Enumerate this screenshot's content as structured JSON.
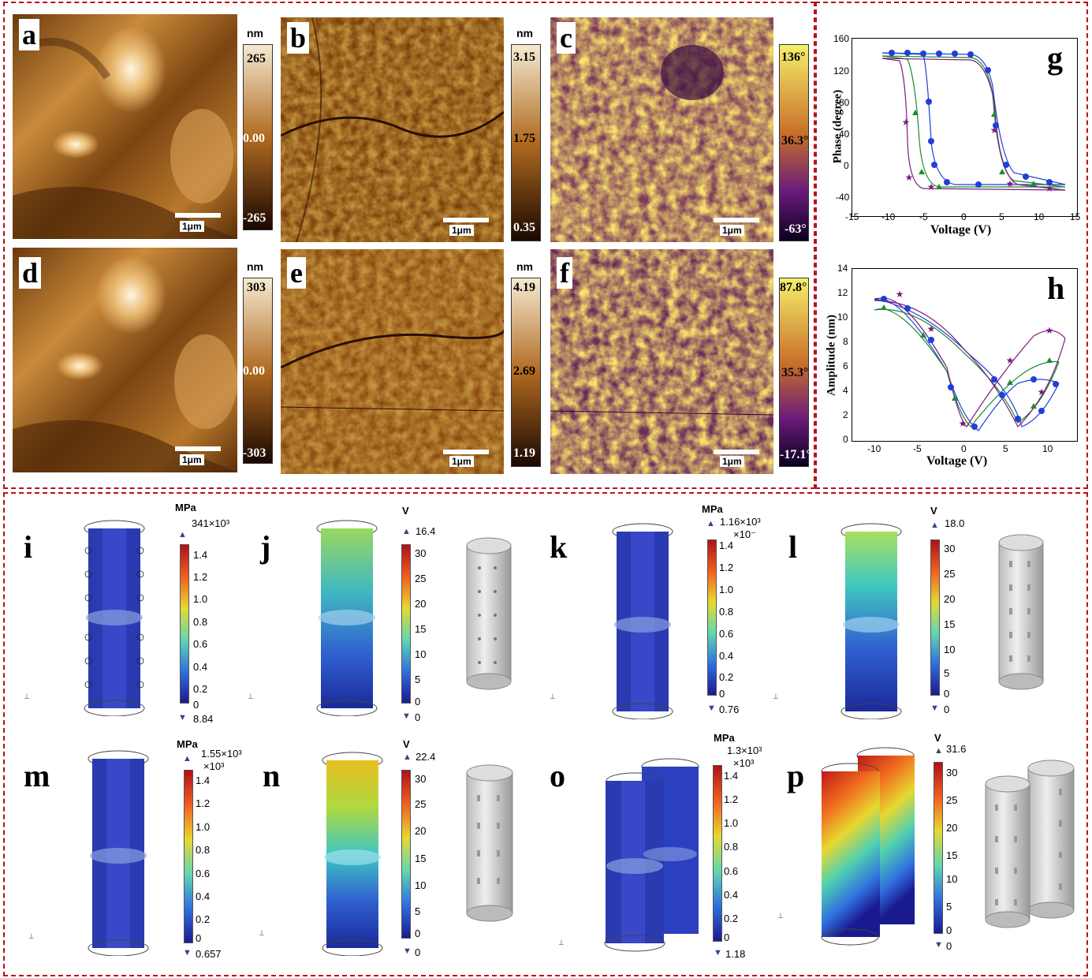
{
  "panels": {
    "a": {
      "letter": "a",
      "unit": "nm",
      "max": "265",
      "mid": "0.00",
      "min": "-265",
      "scale": "1μm"
    },
    "b": {
      "letter": "b",
      "unit": "nm",
      "max": "3.15",
      "mid": "1.75",
      "min": "0.35",
      "scale": "1μm"
    },
    "c": {
      "letter": "c",
      "unit": "",
      "max": "136°",
      "mid": "36.3°",
      "min": "-63°",
      "scale": "1μm"
    },
    "d": {
      "letter": "d",
      "unit": "nm",
      "max": "303",
      "mid": "0.00",
      "min": "-303",
      "scale": "1μm"
    },
    "e": {
      "letter": "e",
      "unit": "nm",
      "max": "4.19",
      "mid": "2.69",
      "min": "1.19",
      "scale": "1μm"
    },
    "f": {
      "letter": "f",
      "unit": "",
      "max": "87.8°",
      "mid": "35.3°",
      "min": "-17.1°",
      "scale": "1μm"
    }
  },
  "plots": {
    "g": {
      "letter": "g",
      "ylabel": "Phase (degree)",
      "xlabel": "Voltage (V)",
      "yticks": [
        "160",
        "120",
        "80",
        "40",
        "0",
        "-40"
      ],
      "xticks": [
        "-15",
        "-10",
        "-5",
        "0",
        "5",
        "10",
        "15"
      ]
    },
    "h": {
      "letter": "h",
      "ylabel": "Amplitude (nm)",
      "xlabel": "Voltage (V)",
      "yticks": [
        "14",
        "12",
        "10",
        "8",
        "6",
        "4",
        "2",
        "0"
      ],
      "xticks": [
        "-10",
        "-5",
        "0",
        "5",
        "10"
      ]
    }
  },
  "sims": {
    "i": {
      "letter": "i",
      "unit": "MPa",
      "top": "341×10³",
      "bottom": "8.84",
      "ticks": [
        "1.4",
        "1.2",
        "1.0",
        "0.8",
        "0.6",
        "0.4",
        "0.2",
        "0"
      ]
    },
    "j": {
      "letter": "j",
      "unit": "V",
      "top": "16.4",
      "bottom": "0",
      "ticks": [
        "30",
        "25",
        "20",
        "15",
        "10",
        "5",
        "0"
      ]
    },
    "k": {
      "letter": "k",
      "unit": "MPa",
      "top": "1.16×10³",
      "sub": "×10⁻",
      "bottom": "0.76",
      "ticks": [
        "1.4",
        "1.2",
        "1.0",
        "0.8",
        "0.6",
        "0.4",
        "0.2",
        "0"
      ]
    },
    "l": {
      "letter": "l",
      "unit": "V",
      "top": "18.0",
      "bottom": "0",
      "ticks": [
        "30",
        "25",
        "20",
        "15",
        "10",
        "5",
        "0"
      ]
    },
    "m": {
      "letter": "m",
      "unit": "MPa",
      "top": "1.55×10³",
      "sub": "×10³",
      "bottom": "0.657",
      "ticks": [
        "1.4",
        "1.2",
        "1.0",
        "0.8",
        "0.6",
        "0.4",
        "0.2",
        "0"
      ]
    },
    "n": {
      "letter": "n",
      "unit": "V",
      "top": "22.4",
      "bottom": "0",
      "ticks": [
        "30",
        "25",
        "20",
        "15",
        "10",
        "5",
        "0"
      ]
    },
    "o": {
      "letter": "o",
      "unit": "MPa",
      "top": "1.3×10³",
      "sub": "×10³",
      "bottom": "1.18",
      "ticks": [
        "1.4",
        "1.2",
        "1.0",
        "0.8",
        "0.6",
        "0.4",
        "0.2",
        "0"
      ]
    },
    "p": {
      "letter": "p",
      "unit": "V",
      "top": "31.6",
      "bottom": "0",
      "ticks": [
        "30",
        "25",
        "20",
        "15",
        "10",
        "5",
        "0"
      ]
    }
  },
  "colors": {
    "frame": "#b5121b",
    "pfmCopper": "#8a4a10",
    "phaseGold": "#e0b020",
    "phasePurple": "#4a1a6a",
    "stressBlue": "#2a3ab0",
    "series1": "#1f3fd8",
    "series2": "#1e8a2e",
    "series3": "#7a1a7a"
  }
}
